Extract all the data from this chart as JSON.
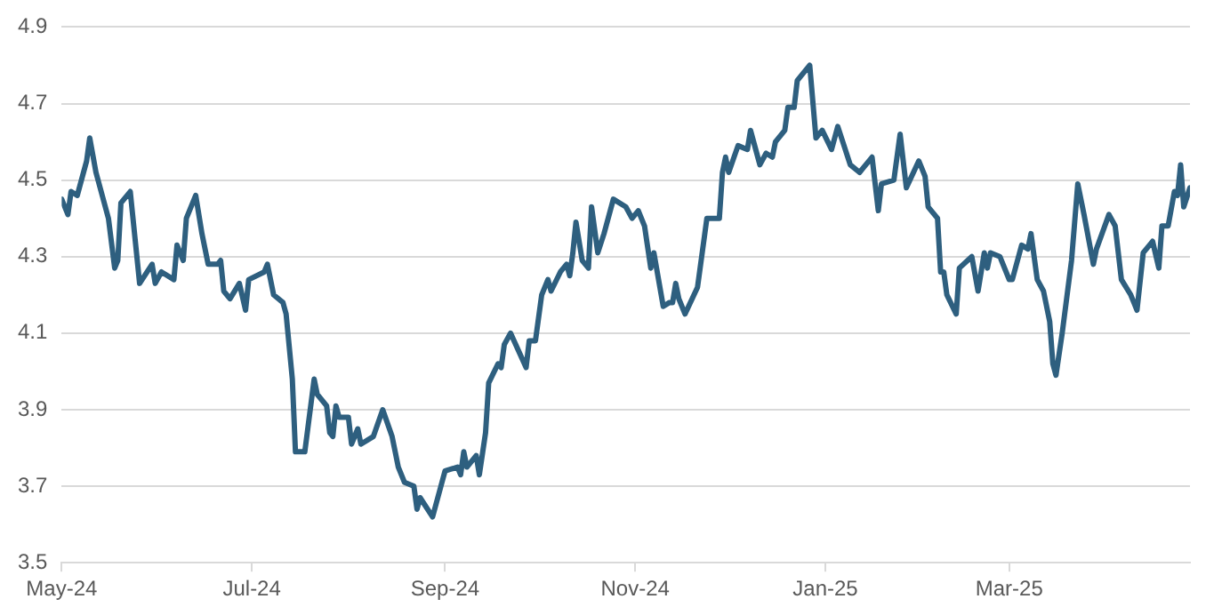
{
  "chart_data": {
    "type": "line",
    "xlim": [
      "2024-05-01",
      "2025-04-28"
    ],
    "xticks": [
      {
        "value": "2024-05-01",
        "label": "May-24"
      },
      {
        "value": "2024-07-01",
        "label": "Jul-24"
      },
      {
        "value": "2024-09-01",
        "label": "Sep-24"
      },
      {
        "value": "2024-11-01",
        "label": "Nov-24"
      },
      {
        "value": "2025-01-01",
        "label": "Jan-25"
      },
      {
        "value": "2025-03-01",
        "label": "Mar-25"
      }
    ],
    "ylim": [
      3.5,
      4.9
    ],
    "yticks": [
      3.5,
      3.7,
      3.9,
      4.1,
      4.3,
      4.5,
      4.7,
      4.9
    ],
    "grid": "y",
    "legend": false,
    "marker": "none",
    "line_style": "solid",
    "series": [
      {
        "color": "#2e5f7f",
        "x": [
          "2024-05-01",
          "2024-05-03",
          "2024-05-04",
          "2024-05-06",
          "2024-05-09",
          "2024-05-10",
          "2024-05-12",
          "2024-05-16",
          "2024-05-18",
          "2024-05-19",
          "2024-05-20",
          "2024-05-23",
          "2024-05-26",
          "2024-05-30",
          "2024-05-31",
          "2024-06-02",
          "2024-06-06",
          "2024-06-07",
          "2024-06-09",
          "2024-06-10",
          "2024-06-13",
          "2024-06-15",
          "2024-06-17",
          "2024-06-20",
          "2024-06-21",
          "2024-06-22",
          "2024-06-24",
          "2024-06-27",
          "2024-06-29",
          "2024-06-30",
          "2024-07-05",
          "2024-07-06",
          "2024-07-08",
          "2024-07-11",
          "2024-07-12",
          "2024-07-14",
          "2024-07-15",
          "2024-07-18",
          "2024-07-21",
          "2024-07-22",
          "2024-07-25",
          "2024-07-26",
          "2024-07-27",
          "2024-07-28",
          "2024-07-29",
          "2024-08-01",
          "2024-08-02",
          "2024-08-04",
          "2024-08-05",
          "2024-08-09",
          "2024-08-12",
          "2024-08-15",
          "2024-08-17",
          "2024-08-19",
          "2024-08-22",
          "2024-08-23",
          "2024-08-24",
          "2024-08-28",
          "2024-08-31",
          "2024-09-01",
          "2024-09-05",
          "2024-09-06",
          "2024-09-07",
          "2024-09-08",
          "2024-09-11",
          "2024-09-12",
          "2024-09-14",
          "2024-09-15",
          "2024-09-18",
          "2024-09-19",
          "2024-09-20",
          "2024-09-22",
          "2024-09-27",
          "2024-09-28",
          "2024-09-30",
          "2024-10-02",
          "2024-10-04",
          "2024-10-05",
          "2024-10-08",
          "2024-10-10",
          "2024-10-11",
          "2024-10-12",
          "2024-10-13",
          "2024-10-15",
          "2024-10-17",
          "2024-10-18",
          "2024-10-20",
          "2024-10-22",
          "2024-10-25",
          "2024-10-29",
          "2024-10-31",
          "2024-11-02",
          "2024-11-04",
          "2024-11-06",
          "2024-11-07",
          "2024-11-10",
          "2024-11-12",
          "2024-11-13",
          "2024-11-14",
          "2024-11-15",
          "2024-11-17",
          "2024-11-21",
          "2024-11-24",
          "2024-11-28",
          "2024-11-29",
          "2024-11-30",
          "2024-12-01",
          "2024-12-04",
          "2024-12-07",
          "2024-12-08",
          "2024-12-11",
          "2024-12-13",
          "2024-12-15",
          "2024-12-16",
          "2024-12-19",
          "2024-12-20",
          "2024-12-22",
          "2024-12-23",
          "2024-12-27",
          "2024-12-29",
          "2024-12-31",
          "2025-01-03",
          "2025-01-05",
          "2025-01-09",
          "2025-01-12",
          "2025-01-13",
          "2025-01-16",
          "2025-01-18",
          "2025-01-19",
          "2025-01-23",
          "2025-01-25",
          "2025-01-27",
          "2025-01-31",
          "2025-02-02",
          "2025-02-03",
          "2025-02-06",
          "2025-02-07",
          "2025-02-08",
          "2025-02-09",
          "2025-02-12",
          "2025-02-13",
          "2025-02-17",
          "2025-02-19",
          "2025-02-21",
          "2025-02-22",
          "2025-02-23",
          "2025-02-26",
          "2025-03-01",
          "2025-03-02",
          "2025-03-05",
          "2025-03-07",
          "2025-03-08",
          "2025-03-10",
          "2025-03-12",
          "2025-03-14",
          "2025-03-15",
          "2025-03-16",
          "2025-03-18",
          "2025-03-21",
          "2025-03-23",
          "2025-03-25",
          "2025-03-28",
          "2025-03-29",
          "2025-04-02",
          "2025-04-04",
          "2025-04-06",
          "2025-04-09",
          "2025-04-11",
          "2025-04-13",
          "2025-04-16",
          "2025-04-18",
          "2025-04-19",
          "2025-04-21",
          "2025-04-23",
          "2025-04-24",
          "2025-04-25",
          "2025-04-26",
          "2025-04-28"
        ],
        "values": [
          4.45,
          4.41,
          4.47,
          4.46,
          4.55,
          4.61,
          4.52,
          4.4,
          4.27,
          4.29,
          4.44,
          4.47,
          4.23,
          4.28,
          4.23,
          4.26,
          4.24,
          4.33,
          4.29,
          4.4,
          4.46,
          4.36,
          4.28,
          4.28,
          4.29,
          4.21,
          4.19,
          4.23,
          4.16,
          4.24,
          4.26,
          4.28,
          4.2,
          4.18,
          4.15,
          3.98,
          3.79,
          3.79,
          3.98,
          3.94,
          3.91,
          3.84,
          3.83,
          3.91,
          3.88,
          3.88,
          3.81,
          3.85,
          3.81,
          3.83,
          3.9,
          3.83,
          3.75,
          3.71,
          3.7,
          3.64,
          3.67,
          3.62,
          3.71,
          3.74,
          3.75,
          3.73,
          3.79,
          3.75,
          3.78,
          3.73,
          3.84,
          3.97,
          4.02,
          4.01,
          4.07,
          4.1,
          4.01,
          4.08,
          4.08,
          4.2,
          4.24,
          4.21,
          4.26,
          4.28,
          4.25,
          4.31,
          4.39,
          4.29,
          4.27,
          4.43,
          4.31,
          4.36,
          4.45,
          4.43,
          4.4,
          4.42,
          4.38,
          4.27,
          4.31,
          4.17,
          4.18,
          4.18,
          4.23,
          4.19,
          4.15,
          4.22,
          4.4,
          4.4,
          4.52,
          4.56,
          4.52,
          4.59,
          4.58,
          4.63,
          4.54,
          4.57,
          4.56,
          4.6,
          4.63,
          4.69,
          4.69,
          4.76,
          4.8,
          4.61,
          4.63,
          4.58,
          4.64,
          4.54,
          4.52,
          4.53,
          4.56,
          4.42,
          4.49,
          4.5,
          4.62,
          4.48,
          4.55,
          4.51,
          4.43,
          4.4,
          4.26,
          4.26,
          4.2,
          4.15,
          4.27,
          4.3,
          4.21,
          4.31,
          4.27,
          4.31,
          4.3,
          4.24,
          4.24,
          4.33,
          4.32,
          4.36,
          4.24,
          4.21,
          4.13,
          4.02,
          3.99,
          4.1,
          4.29,
          4.49,
          4.41,
          4.28,
          4.32,
          4.41,
          4.38,
          4.24,
          4.2,
          4.16,
          4.31,
          4.34,
          4.27,
          4.38,
          4.38,
          4.47,
          4.46,
          4.54,
          4.43,
          4.48
        ]
      }
    ]
  }
}
